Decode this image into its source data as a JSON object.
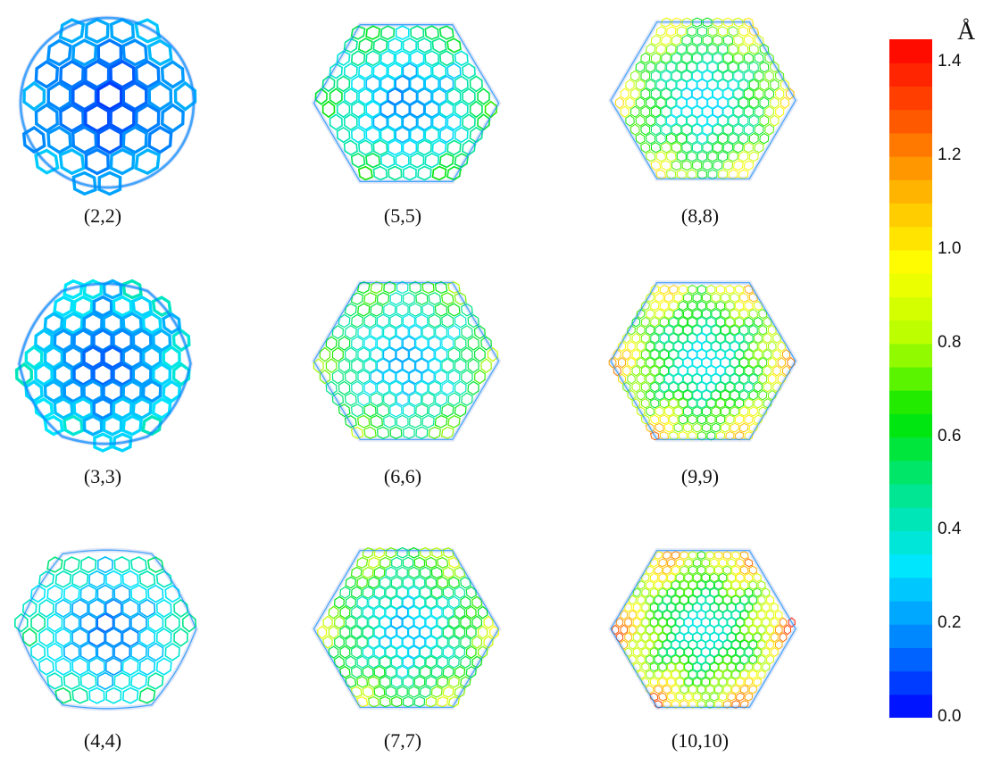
{
  "panels": [
    {
      "label": "(2,2)",
      "n": 2
    },
    {
      "label": "(5,5)",
      "n": 5
    },
    {
      "label": "(8,8)",
      "n": 8
    },
    {
      "label": "(3,3)",
      "n": 3
    },
    {
      "label": "(6,6)",
      "n": 6
    },
    {
      "label": "(9,9)",
      "n": 9
    },
    {
      "label": "(4,4)",
      "n": 4
    },
    {
      "label": "(7,7)",
      "n": 7
    },
    {
      "label": "(10,10)",
      "n": 10
    }
  ],
  "colorbar": {
    "unit": "Å",
    "min": 0.0,
    "max": 1.45,
    "ticks": [
      "1.4",
      "1.2",
      "1.0",
      "0.8",
      "0.6",
      "0.4",
      "0.2",
      "0.0"
    ],
    "tick_values": [
      1.4,
      1.2,
      1.0,
      0.8,
      0.6,
      0.4,
      0.2,
      0.0
    ],
    "colors": [
      "#0000ff",
      "#0080ff",
      "#00e6ff",
      "#00e68c",
      "#00e600",
      "#b4ff00",
      "#ffff00",
      "#ffb400",
      "#ff5000",
      "#ff0000"
    ]
  }
}
